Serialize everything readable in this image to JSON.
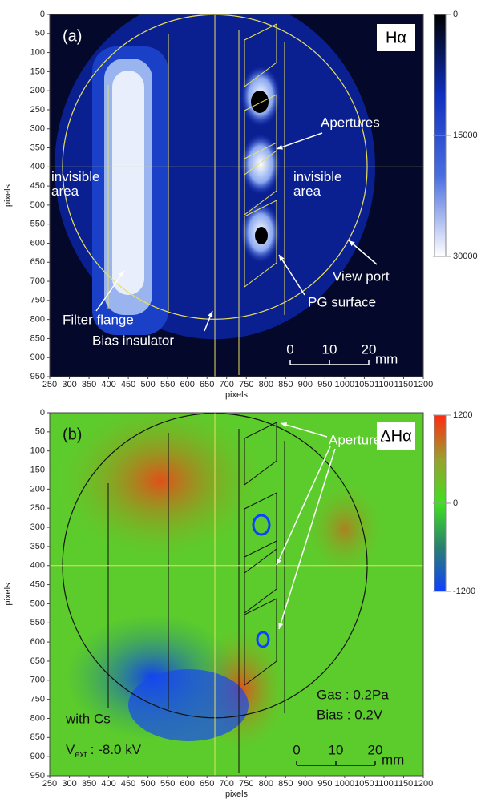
{
  "chart_data": [
    {
      "type": "heatmap",
      "panel_label": "(a)",
      "title": "Hα",
      "xlabel": "pixels",
      "ylabel": "pixels",
      "xlim": [
        250,
        1200
      ],
      "ylim": [
        950,
        0
      ],
      "y_inverted": true,
      "xticks": [
        250,
        300,
        350,
        400,
        450,
        500,
        550,
        600,
        650,
        700,
        750,
        800,
        850,
        900,
        950,
        1000,
        1050,
        1100,
        1150,
        1200
      ],
      "yticks": [
        0,
        50,
        100,
        150,
        200,
        250,
        300,
        350,
        400,
        450,
        500,
        550,
        600,
        650,
        700,
        750,
        800,
        850,
        900,
        950
      ],
      "outline_color": "#e8e060",
      "colorbar": {
        "lim": [
          0,
          30000
        ],
        "ticks": [
          0,
          15000,
          30000
        ],
        "colors": [
          "#000000",
          "#1030c0",
          "#4a6ee0",
          "#ffffff"
        ]
      },
      "annotations": [
        "Apertures",
        "invisible area",
        "invisible area",
        "View port",
        "PG surface",
        "Filter flange",
        "Bias insulator"
      ],
      "scale_bar": {
        "ticks": [
          0,
          10,
          20
        ],
        "unit": "mm"
      }
    },
    {
      "type": "heatmap",
      "panel_label": "(b)",
      "title": "ΔHα",
      "xlabel": "pixels",
      "ylabel": "pixels",
      "xlim": [
        250,
        1200
      ],
      "ylim": [
        950,
        0
      ],
      "y_inverted": true,
      "xticks": [
        250,
        300,
        350,
        400,
        450,
        500,
        550,
        600,
        650,
        700,
        750,
        800,
        850,
        900,
        950,
        1000,
        1050,
        1100,
        1150,
        1200
      ],
      "yticks": [
        0,
        50,
        100,
        150,
        200,
        250,
        300,
        350,
        400,
        450,
        500,
        550,
        600,
        650,
        700,
        750,
        800,
        850,
        900,
        950
      ],
      "outline_color": "#111111",
      "colorbar": {
        "lim": [
          1200,
          -1200
        ],
        "ticks": [
          1200,
          0,
          -1200
        ],
        "colors": [
          "#ff2a10",
          "#9aa030",
          "#40e020",
          "#2a8070",
          "#1040ff"
        ]
      },
      "annotations": [
        "Apertures",
        "Gas : 0.2Pa",
        "Bias : 0.2V",
        "with Cs"
      ],
      "vext": {
        "main": "V",
        "sub": "ext",
        "rest": " : -8.0 kV"
      },
      "scale_bar": {
        "ticks": [
          0,
          10,
          20
        ],
        "unit": "mm"
      }
    }
  ]
}
